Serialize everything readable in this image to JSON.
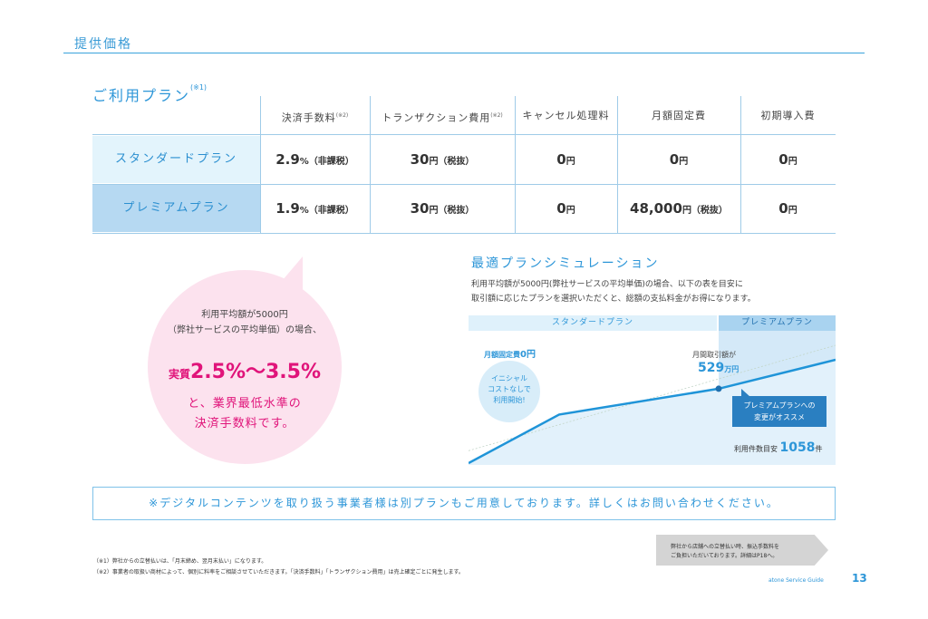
{
  "header": {
    "section_title": "提供価格"
  },
  "plans": {
    "heading": "ご利用プラン",
    "heading_note": "(※1)",
    "columns": [
      {
        "label": "決済手数料",
        "note": "(※2)"
      },
      {
        "label": "トランザクション費用",
        "note": "(※2)"
      },
      {
        "label": "キャンセル処理料",
        "note": ""
      },
      {
        "label": "月額固定費",
        "note": ""
      },
      {
        "label": "初期導入費",
        "note": ""
      }
    ],
    "rows": [
      {
        "name": "スタンダードプラン",
        "color": "#e3f4fc",
        "cells": [
          {
            "value": "2.9",
            "unit": "%（非課税）"
          },
          {
            "value": "30",
            "unit": "円（税抜）"
          },
          {
            "value": "0",
            "unit": "円"
          },
          {
            "value": "0",
            "unit": "円"
          },
          {
            "value": "0",
            "unit": "円"
          }
        ]
      },
      {
        "name": "プレミアムプラン",
        "color": "#b6d9f2",
        "cells": [
          {
            "value": "1.9",
            "unit": "%（非課税）"
          },
          {
            "value": "30",
            "unit": "円（税抜）"
          },
          {
            "value": "0",
            "unit": "円"
          },
          {
            "value": "48,000",
            "unit": "円（税抜）"
          },
          {
            "value": "0",
            "unit": "円"
          }
        ]
      }
    ]
  },
  "bubble": {
    "line1": "利用平均額が5000円",
    "line2": "（弊社サービスの平均単価）の場合、",
    "rate_prefix": "実質",
    "rate_range": "2.5%～3.5%",
    "line3": "と、業界最低水準の",
    "line4": "決済手数料です。",
    "color": "#e0147a"
  },
  "simulation": {
    "title": "最適プランシミュレーション",
    "desc_line1": "利用平均額が5000円(弊社サービスの平均単価)の場合、以下の表を目安に",
    "desc_line2": "取引額に応じたプランを選択いただくと、総額の支払料金がお得になります。",
    "band_standard": "スタンダードプラン",
    "band_premium": "プレミアムプラン",
    "fixed_label": "月額固定費",
    "fixed_value": "0円",
    "initial_line1": "イニシャル",
    "initial_line2": "コストなしで",
    "initial_line3": "利用開始!",
    "monthly_label": "月間取引額が",
    "monthly_value": "529",
    "monthly_unit": "万円",
    "reco_line1": "プレミアムプランへの",
    "reco_line2": "変更がオススメ",
    "count_label": "利用件数目安",
    "count_value": "1058",
    "count_unit": "件",
    "chart_data": {
      "type": "line",
      "x": [
        0,
        1,
        2,
        3
      ],
      "series": [
        {
          "values": [
            0,
            0.47,
            0.72,
            1.0
          ]
        }
      ]
    }
  },
  "notice": "※デジタルコンテンツを取り扱う事業者様は別プランもご用意しております。詳しくはお問い合わせください。",
  "fee_note": {
    "line1": "弊社から店舗への立替払い時、振込手数料を",
    "line2": "ご負担いただいております。詳細はP18へ。"
  },
  "footnotes": [
    "（※1）弊社からの立替払いは、「月末締め、翌月末払い」になります。",
    "（※2）事業者の取扱い商材によって、個別に料率をご相談させていただきます。「決済手数料」「トランザクション費用」は売上確定ごとに発生します。"
  ],
  "footer": {
    "guide": "atone Service Guide",
    "page": "13"
  }
}
